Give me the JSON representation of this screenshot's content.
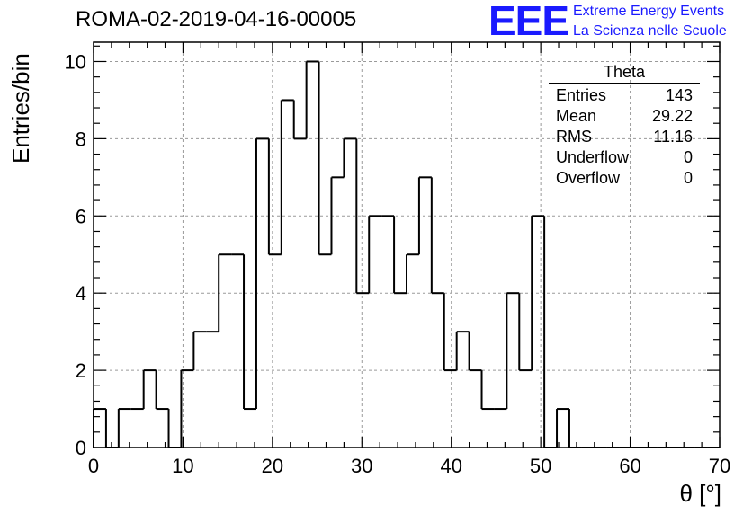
{
  "header": {
    "run_title": "ROMA-02-2019-04-16-00005",
    "logo_text": "EEE",
    "logo_line1": "Extreme Energy Events",
    "logo_line2": "La Scienza nelle Scuole"
  },
  "stats": {
    "title": "Theta",
    "rows": [
      {
        "label": "Entries",
        "value": "143"
      },
      {
        "label": "Mean",
        "value": "29.22"
      },
      {
        "label": "RMS",
        "value": "11.16"
      },
      {
        "label": "Underflow",
        "value": "0"
      },
      {
        "label": "Overflow",
        "value": "0"
      }
    ]
  },
  "colors": {
    "accent": "#1a1aff",
    "line": "#000000",
    "grid": "#9a9a9a"
  },
  "chart_data": {
    "type": "histogram",
    "xlabel": "θ [°]",
    "ylabel": "Entries/bin",
    "xlim": [
      0,
      70
    ],
    "ylim": [
      0,
      10.5
    ],
    "grid": true,
    "x_ticks": [
      0,
      10,
      20,
      30,
      40,
      50,
      60,
      70
    ],
    "y_ticks": [
      0,
      2,
      4,
      6,
      8,
      10
    ],
    "bin_width": 1.4,
    "bin_edges_start": 0,
    "values": [
      1,
      0,
      1,
      1,
      2,
      1,
      0,
      2,
      3,
      3,
      5,
      5,
      1,
      8,
      5,
      9,
      8,
      10,
      5,
      7,
      8,
      4,
      6,
      6,
      4,
      5,
      7,
      4,
      2,
      3,
      2,
      1,
      1,
      4,
      2,
      6,
      0,
      1,
      0,
      0,
      0,
      0,
      0,
      0,
      0,
      0,
      0,
      0,
      0,
      0
    ]
  }
}
